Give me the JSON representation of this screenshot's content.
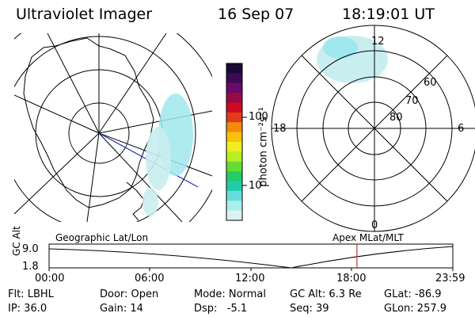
{
  "header": {
    "title": "Ultraviolet Imager",
    "date": "16 Sep 07",
    "time": "18:19:01 UT"
  },
  "colorbar": {
    "label": "photon cm⁻²s⁻¹",
    "ticks": [
      "100",
      "10"
    ],
    "colors": [
      "#1a0a33",
      "#3a0a55",
      "#6a0a66",
      "#990a44",
      "#cc0a22",
      "#e33a1a",
      "#f28a0a",
      "#f6c20a",
      "#eeee22",
      "#b8ee22",
      "#66dd33",
      "#22cc66",
      "#22ccaa",
      "#66dddd",
      "#aaeeee",
      "#ddf2f2"
    ]
  },
  "polar": {
    "labels": [
      "12",
      "60",
      "70",
      "80",
      "18",
      "6",
      "0"
    ]
  },
  "map_labels": {
    "left": "Geographic Lat/Lon",
    "right": "Apex MLat/MLT"
  },
  "orbit": {
    "ylabel": "GC Alt",
    "yticks": [
      "9.0",
      "1.8"
    ],
    "xticks": [
      "00:00",
      "06:00",
      "12:00",
      "18:00",
      "23:59"
    ],
    "marker_hour": 18.3
  },
  "info": [
    [
      "Flt: LBHL",
      "Door: Open",
      "Mode: Normal",
      "GC Alt: 6.3 Re",
      "GLat: -86.9"
    ],
    [
      "IP: 36.0",
      "Gain: 14",
      "Dsp:   -5.1",
      "Seq: 39",
      "GLon: 257.9"
    ]
  ]
}
